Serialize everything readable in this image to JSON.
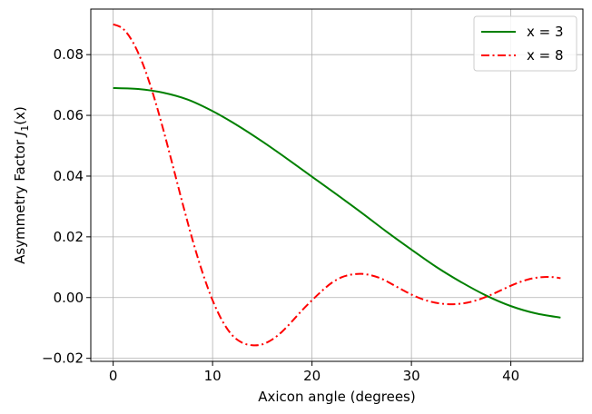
{
  "chart_data": {
    "type": "line",
    "xlabel": "Axicon angle (degrees)",
    "ylabel_prefix": "Asymmetry Factor ",
    "ylabel_math": "J",
    "ylabel_sub": "1",
    "ylabel_suffix": "(x)",
    "xlim": [
      -2.25,
      47.25
    ],
    "ylim": [
      -0.021,
      0.095
    ],
    "xticks": [
      0,
      10,
      20,
      30,
      40
    ],
    "xtick_labels": [
      "0",
      "10",
      "20",
      "30",
      "40"
    ],
    "yticks": [
      -0.02,
      0.0,
      0.02,
      0.04,
      0.06,
      0.08
    ],
    "ytick_labels": [
      "−0.02",
      "0.00",
      "0.02",
      "0.04",
      "0.06",
      "0.08"
    ],
    "grid": true,
    "legend_position": "top-right",
    "series": [
      {
        "name": "x = 3",
        "color": "#008000",
        "line_style": "solid",
        "x": [
          0,
          2.5,
          5,
          7.5,
          10,
          12.5,
          15,
          17.5,
          20,
          22.5,
          25,
          27.5,
          30,
          32.5,
          35,
          37.5,
          40,
          42.5,
          45
        ],
        "y": [
          0.069,
          0.0687,
          0.0675,
          0.0652,
          0.0614,
          0.0567,
          0.0514,
          0.0457,
          0.0398,
          0.0339,
          0.0279,
          0.0217,
          0.0158,
          0.0101,
          0.0051,
          0.0007,
          -0.0028,
          -0.0052,
          -0.0066
        ]
      },
      {
        "name": "x = 8",
        "color": "#ff0000",
        "line_style": "dashdot",
        "x": [
          0,
          1,
          2,
          3,
          4,
          5,
          6,
          7,
          8,
          9,
          10,
          11,
          12,
          13,
          14,
          15,
          16,
          17,
          18,
          19,
          20,
          21,
          22,
          23,
          24,
          25,
          26,
          27,
          28,
          29,
          30,
          31,
          32,
          33,
          34,
          35,
          36,
          37,
          38,
          39,
          40,
          41,
          42,
          43,
          44,
          45
        ],
        "y": [
          0.09,
          0.0885,
          0.084,
          0.0768,
          0.0672,
          0.0558,
          0.0434,
          0.0308,
          0.0188,
          0.0081,
          -0.0009,
          -0.0078,
          -0.0125,
          -0.0149,
          -0.0157,
          -0.0154,
          -0.0138,
          -0.0112,
          -0.0078,
          -0.0042,
          -0.0009,
          0.0022,
          0.0049,
          0.0067,
          0.0076,
          0.0078,
          0.0073,
          0.0062,
          0.0045,
          0.0027,
          0.001,
          -0.0004,
          -0.0014,
          -0.002,
          -0.0022,
          -0.002,
          -0.0014,
          -0.0004,
          0.0009,
          0.0024,
          0.0039,
          0.0052,
          0.0062,
          0.0067,
          0.0068,
          0.0064
        ]
      }
    ]
  }
}
